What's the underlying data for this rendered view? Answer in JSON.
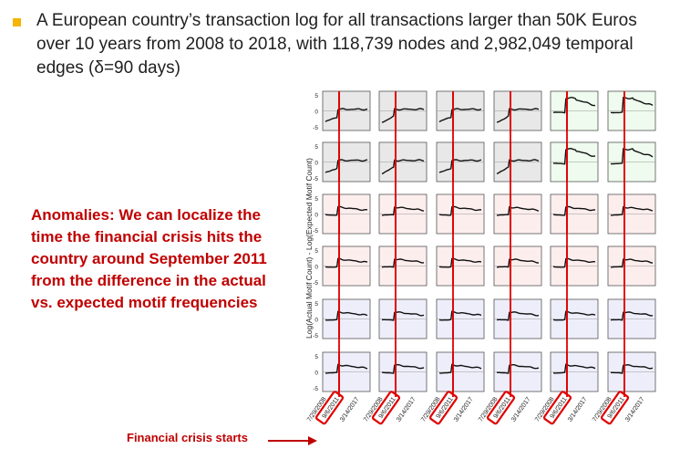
{
  "slide": {
    "bullet_text": "A European country’s transaction log for all transactions larger than 50K Euros over 10 years from 2008 to 2018, with 118,739 nodes and 2,982,049 temporal edges (δ=90 days)",
    "anomaly_text": "Anomalies: We can localize the time the financial crisis hits the country around September 2011 from the difference in the actual vs. expected motif frequencies",
    "crisis_label": "Financial crisis starts",
    "accent_color": "#c00000",
    "bullet_color": "#f4b400"
  },
  "figure": {
    "ylabel": "Log(Actual Motif Count) - Log(Expected Motif Count)",
    "y_ticks": [
      "5",
      "0",
      "-5"
    ],
    "x_ticks": [
      "7/29/2008",
      "9/6/2011",
      "3/14/2017"
    ],
    "crisis_tick": "9/6/2011",
    "row_fills": [
      "#e8e8e8",
      "#e8e8e8",
      "#fdeeee",
      "#fdeeee",
      "#eeeefb",
      "#eeeefb"
    ],
    "highlight_fill": "#eefbee",
    "highlight_cells": [
      [
        0,
        4
      ],
      [
        0,
        5
      ],
      [
        1,
        4
      ],
      [
        1,
        5
      ]
    ]
  }
}
